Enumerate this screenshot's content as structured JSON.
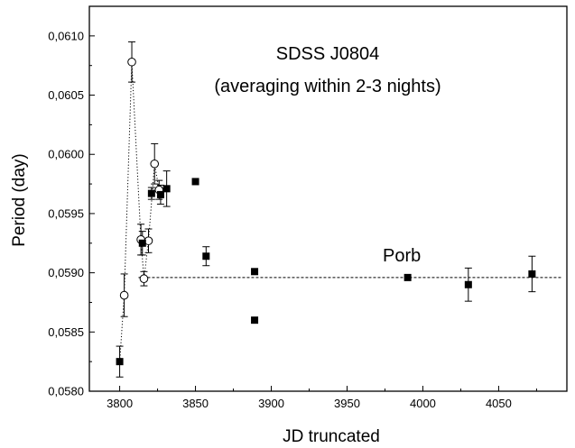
{
  "chart_data": {
    "type": "scatter",
    "title": "SDSS J0804",
    "subtitle": "(averaging within 2-3 nights)",
    "xlabel": "JD truncated",
    "ylabel": "Period (day)",
    "xlim": [
      3780,
      4095
    ],
    "ylim": [
      0.058,
      0.06125
    ],
    "x_ticks": [
      3800,
      3850,
      3900,
      3950,
      4000,
      4050
    ],
    "x_tick_labels": [
      "3800",
      "3850",
      "3900",
      "3950",
      "4000",
      "4050"
    ],
    "y_ticks": [
      0.058,
      0.0585,
      0.059,
      0.0595,
      0.06,
      0.0605,
      0.061
    ],
    "y_tick_labels": [
      "0,0580",
      "0,0585",
      "0,0590",
      "0,0595",
      "0,0600",
      "0,0605",
      "0,0610"
    ],
    "grid": false,
    "annotations": [
      {
        "text": "Porb",
        "x": 3992,
        "y": 0.05915
      }
    ],
    "reference_line": {
      "label": "Porb",
      "y": 0.05896,
      "style": "dashed"
    },
    "series": [
      {
        "marker": "filled-square",
        "points": [
          {
            "x": 3800,
            "y": 0.05825,
            "err": 0.00013
          },
          {
            "x": 3815,
            "y": 0.05925,
            "err": 0.0001
          },
          {
            "x": 3821,
            "y": 0.05967,
            "err": 5e-05
          },
          {
            "x": 3827,
            "y": 0.05966,
            "err": 8e-05
          },
          {
            "x": 3831,
            "y": 0.05971,
            "err": 0.00015
          },
          {
            "x": 3850,
            "y": 0.05977,
            "err": null
          },
          {
            "x": 3857,
            "y": 0.05914,
            "err": 8e-05
          },
          {
            "x": 3889,
            "y": 0.05901,
            "err": null
          },
          {
            "x": 3889,
            "y": 0.0586,
            "err": null
          },
          {
            "x": 3990,
            "y": 0.05896,
            "err": null
          },
          {
            "x": 4030,
            "y": 0.0589,
            "err": 0.00014
          },
          {
            "x": 4072,
            "y": 0.05899,
            "err": 0.00015
          }
        ]
      },
      {
        "marker": "open-circle",
        "connected": "dotted",
        "points": [
          {
            "x": 3800,
            "y": 0.05825,
            "err": null
          },
          {
            "x": 3803,
            "y": 0.05881,
            "err": 0.00018
          },
          {
            "x": 3808,
            "y": 0.06078,
            "err": 0.00017
          },
          {
            "x": 3814,
            "y": 0.05928,
            "err": 0.00013
          },
          {
            "x": 3816,
            "y": 0.05895,
            "err": 6e-05
          },
          {
            "x": 3819,
            "y": 0.05927,
            "err": 0.0001
          },
          {
            "x": 3823,
            "y": 0.05992,
            "err": 0.00017
          },
          {
            "x": 3826,
            "y": 0.0597,
            "err": 8e-05
          }
        ]
      }
    ]
  }
}
